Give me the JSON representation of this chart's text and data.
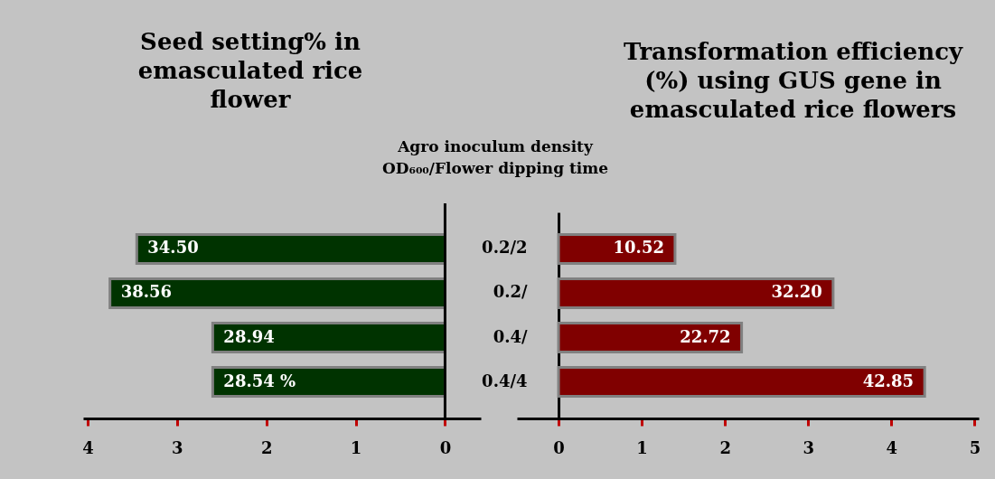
{
  "chart_data": [
    {
      "type": "bar",
      "orientation": "horizontal",
      "title": "Seed setting% in emasculated rice flower",
      "categories": [
        null,
        null,
        null,
        null
      ],
      "values": [
        3.45,
        3.75,
        2.6,
        2.6
      ],
      "color": "#003300",
      "xlim": [
        4.05,
        -0.4
      ],
      "xticks": [
        4,
        3,
        2,
        1,
        0
      ],
      "tick_labels": "x",
      "grid": false,
      "annotations": [
        {
          "text": "34.50",
          "x": 3.45
        },
        {
          "text": "38.56",
          "x": 3.75
        },
        {
          "text": "28.94",
          "x": 2.6
        },
        {
          "text": "28.54 %",
          "x": 2.6
        }
      ],
      "ref_lines": [
        {
          "axis": "x",
          "value": 0,
          "color": "#000000"
        }
      ]
    },
    {
      "type": "bar",
      "orientation": "horizontal",
      "title": "Transformation efficiency (%) using GUS gene in emasculated rice flowers",
      "categories": [
        "0.2/2",
        "0.2/",
        "0.4/",
        "0.4/4"
      ],
      "values": [
        1.4,
        3.3,
        2.2,
        4.4
      ],
      "color": "#800000",
      "xlim": [
        -0.5,
        5.05
      ],
      "xticks": [
        0,
        1,
        2,
        3,
        4,
        5
      ],
      "grid": false,
      "annotations": [
        "Agro inoculum density OD₆₀₀/Flower dipping time",
        {
          "text": "10.52",
          "x": 1.4,
          "y": "0.2/2"
        },
        {
          "text": "32.20",
          "x": 3.3,
          "y": "0.2/"
        },
        {
          "text": "22.72",
          "x": 2.2,
          "y": "0.4/"
        },
        {
          "text": "42.85",
          "x": 4.4,
          "y": "0.4/4"
        }
      ]
    }
  ]
}
